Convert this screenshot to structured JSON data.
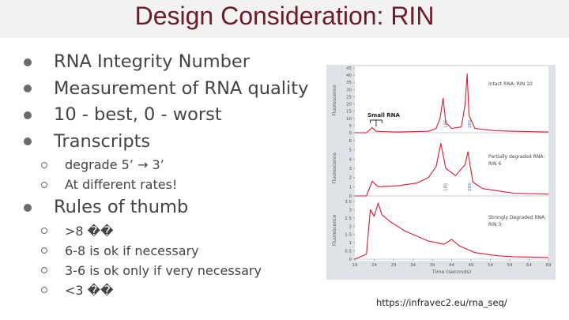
{
  "title": "Design Consideration: RIN",
  "bullets": [
    {
      "text": "RNA Integrity Number"
    },
    {
      "text": "Measurement of RNA quality"
    },
    {
      "text": "10 - best, 0 - worst"
    },
    {
      "text": "Transcripts",
      "sub": [
        "degrade 5’ → 3’",
        "At different rates!"
      ]
    },
    {
      "text": "Rules of thumb",
      "sub": [
        ">8 ��",
        "6-8 is ok if necessary",
        "3-6 is ok only if very necessary",
        "<3 ��"
      ]
    }
  ],
  "source": "https://infravec2.eu/rna_seq/",
  "chart_data": {
    "type": "line",
    "xlabel": "Time (seconds)",
    "ylabel": "Fluorescence",
    "x_ticks": [
      19,
      24,
      29,
      34,
      39,
      44,
      49,
      54,
      59,
      64,
      69
    ],
    "xlim": [
      19,
      69
    ],
    "panels": [
      {
        "label": "Intact RNA: RIN 10",
        "ylim": [
          0,
          45
        ],
        "y_ticks": [
          0,
          5,
          10,
          15,
          20,
          25,
          30,
          35,
          40,
          45
        ],
        "annotation": "Small RNA",
        "peak_labels": [
          "18S",
          "28S"
        ],
        "x": [
          19,
          22,
          23.5,
          24.5,
          26,
          30,
          38,
          40,
          41,
          41.8,
          42.5,
          44,
          46.5,
          47.5,
          48,
          48.5,
          50,
          55,
          60,
          69
        ],
        "y": [
          0,
          0,
          3.5,
          1,
          0.8,
          0.5,
          1,
          3,
          10,
          24,
          7,
          3,
          4,
          20,
          41,
          12,
          3,
          1.5,
          1,
          0.5
        ]
      },
      {
        "label": "Partially degraded RNA: RIN 6",
        "ylim": [
          0,
          6
        ],
        "y_ticks": [
          0,
          1,
          2,
          3,
          4,
          5,
          6
        ],
        "peak_labels": [
          "18S",
          "28S"
        ],
        "x": [
          19,
          22,
          23.5,
          25,
          30,
          35,
          38,
          40,
          41.2,
          42.5,
          45,
          47.5,
          48.2,
          49.5,
          52,
          60,
          69
        ],
        "y": [
          0,
          0,
          1.6,
          1,
          1.1,
          1.4,
          2,
          3.2,
          5.7,
          3,
          2.2,
          3.4,
          4.8,
          1.5,
          0.8,
          0.3,
          0.2
        ]
      },
      {
        "label": "Strongly Degraded RNA: RIN 3",
        "ylim": [
          0,
          3.5
        ],
        "y_ticks": [
          0,
          0.5,
          1.0,
          1.5,
          2.0,
          2.5,
          3.0,
          3.5
        ],
        "x": [
          19,
          22,
          23,
          24,
          25,
          26,
          28,
          30,
          32,
          34,
          36,
          38,
          40,
          42,
          44,
          46,
          48,
          50,
          53,
          56,
          60,
          69
        ],
        "y": [
          0,
          0.3,
          3.0,
          2.6,
          3.4,
          2.7,
          2.3,
          2.0,
          1.7,
          1.5,
          1.3,
          1.1,
          1.0,
          0.9,
          1.2,
          0.8,
          0.6,
          0.4,
          0.3,
          0.2,
          0.15,
          0.1
        ]
      }
    ]
  }
}
